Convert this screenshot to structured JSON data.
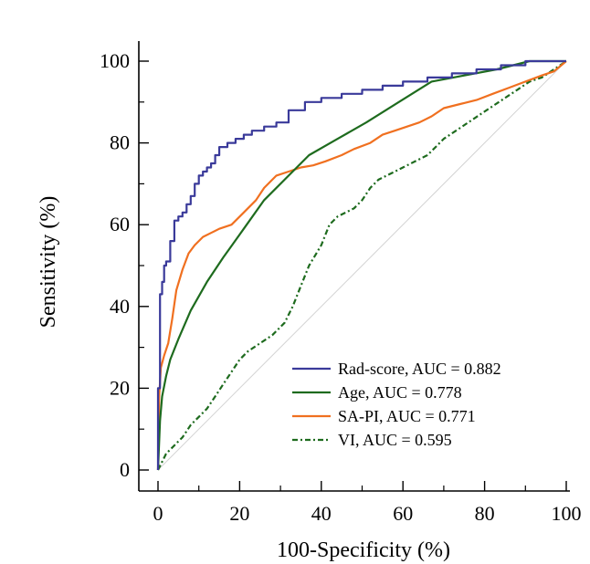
{
  "chart_data": {
    "type": "line",
    "title": "",
    "xlabel": "100-Specificity (%)",
    "ylabel": "Sensitivity (%)",
    "xlim": [
      0,
      100
    ],
    "ylim": [
      0,
      100
    ],
    "xticks": [
      "0",
      "20",
      "40",
      "60",
      "80",
      "100"
    ],
    "yticks": [
      "0",
      "20",
      "40",
      "60",
      "80",
      "100"
    ],
    "grid": false,
    "legend_position": "bottom-right",
    "reference_line": {
      "x": [
        0,
        100
      ],
      "y": [
        0,
        100
      ],
      "color": "#d3d3d3"
    },
    "series": [
      {
        "name": "Rad-score, AUC = 0.882",
        "color": "#3a3a9a",
        "style": "step",
        "x": [
          0,
          0,
          0.5,
          0.5,
          1,
          1,
          1.5,
          1.5,
          2,
          2,
          3,
          3,
          4,
          4,
          5,
          5,
          6,
          6,
          7,
          7,
          8,
          8,
          9,
          9,
          10,
          10,
          11,
          11,
          12,
          12,
          13,
          13,
          14,
          14,
          15,
          15,
          17,
          17,
          19,
          19,
          21,
          21,
          23,
          23,
          26,
          26,
          29,
          29,
          32,
          32,
          36,
          36,
          40,
          40,
          45,
          45,
          50,
          50,
          55,
          55,
          60,
          60,
          66,
          66,
          72,
          72,
          78,
          78,
          84,
          84,
          90,
          90,
          100
        ],
        "y": [
          0,
          20,
          20,
          43,
          43,
          46,
          46,
          50,
          50,
          51,
          51,
          56,
          56,
          61,
          61,
          62,
          62,
          63,
          63,
          65,
          65,
          67,
          67,
          70,
          70,
          72,
          72,
          73,
          73,
          74,
          74,
          75,
          75,
          77,
          77,
          79,
          79,
          80,
          80,
          81,
          81,
          82,
          82,
          83,
          83,
          84,
          84,
          85,
          85,
          88,
          88,
          90,
          90,
          91,
          91,
          92,
          92,
          93,
          93,
          94,
          94,
          95,
          95,
          96,
          96,
          97,
          97,
          98,
          98,
          99,
          99,
          100,
          100
        ]
      },
      {
        "name": "Age, AUC = 0.778",
        "color": "#1e6b1e",
        "style": "line",
        "x": [
          0,
          0.5,
          1,
          2,
          3,
          5,
          8,
          12,
          16,
          21,
          26,
          31,
          37,
          44,
          51,
          59,
          67,
          75,
          83,
          91,
          100
        ],
        "y": [
          0,
          12,
          18,
          23,
          27,
          32,
          39,
          46,
          52,
          59,
          66,
          71,
          77,
          81,
          85,
          90,
          95,
          96.5,
          98,
          100,
          100
        ]
      },
      {
        "name": "SA-PI, AUC = 0.771",
        "color": "#f07020",
        "style": "line",
        "x": [
          0,
          0.3,
          0.7,
          1.5,
          2.5,
          3.5,
          4.5,
          6,
          7.5,
          9,
          11,
          13,
          15,
          18,
          21,
          24,
          26,
          29,
          32,
          35,
          38,
          41,
          45,
          48,
          52,
          55,
          58,
          61,
          64,
          67,
          70,
          74,
          78,
          82,
          86,
          90,
          94,
          97,
          100
        ],
        "y": [
          0,
          18,
          25,
          28,
          31,
          37,
          44,
          49,
          53,
          55,
          57,
          58,
          59,
          60,
          63,
          66,
          69,
          72,
          73,
          74,
          74.5,
          75.5,
          77,
          78.5,
          80,
          82,
          83,
          84,
          85,
          86.5,
          88.5,
          89.5,
          90.5,
          92,
          93.5,
          95,
          96.5,
          97.5,
          100
        ]
      },
      {
        "name": "VI, AUC = 0.595",
        "color": "#1e6b1e",
        "style": "dashdot",
        "x": [
          0,
          1,
          2,
          3,
          4,
          5,
          6,
          8,
          10,
          12,
          14,
          16,
          18,
          20,
          22,
          25,
          28,
          31,
          33,
          35,
          37,
          40,
          42,
          44,
          46,
          48,
          50,
          52,
          54,
          56,
          58,
          60,
          62,
          64,
          66,
          68,
          70,
          73,
          76,
          79,
          82,
          85,
          88,
          91,
          94,
          97,
          100
        ],
        "y": [
          0,
          2,
          4,
          5,
          6,
          7,
          8,
          11,
          13,
          15,
          18,
          21,
          24,
          27,
          29,
          31,
          33,
          36,
          40,
          45,
          50,
          55,
          60,
          62,
          63,
          64,
          66,
          69,
          71,
          72,
          73,
          74,
          75,
          76,
          77,
          79,
          81,
          83,
          85,
          87,
          89,
          91,
          93,
          95,
          96,
          98,
          100
        ]
      }
    ]
  }
}
